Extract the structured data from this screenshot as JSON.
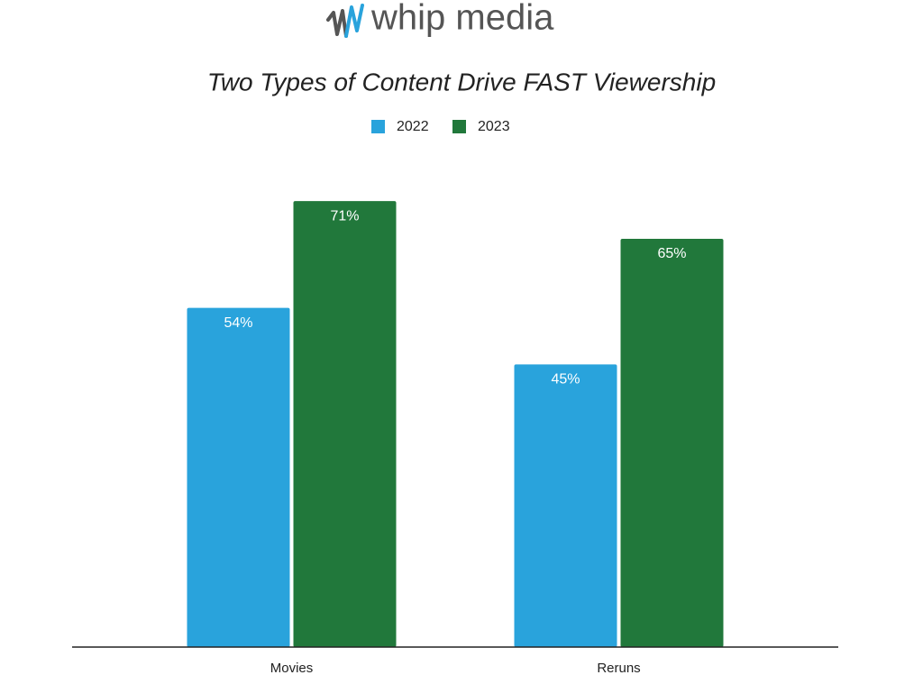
{
  "logo": "whip media",
  "chart_data": {
    "type": "bar",
    "title": "Two Types of Content Drive FAST Viewership",
    "categories": [
      "Movies",
      "Reruns"
    ],
    "series": [
      {
        "name": "2022",
        "color": "#29a3dc",
        "values": [
          54,
          45
        ],
        "value_labels": [
          "54%",
          "45%"
        ]
      },
      {
        "name": "2023",
        "color": "#21783b",
        "values": [
          71,
          65
        ],
        "value_labels": [
          "71%",
          "65%"
        ]
      }
    ],
    "ylim": [
      0,
      100
    ],
    "grid": false
  }
}
